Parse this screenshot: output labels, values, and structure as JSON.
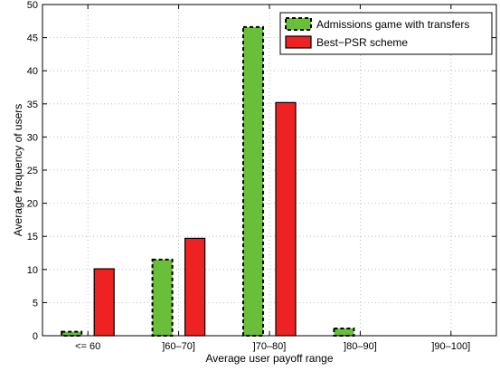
{
  "chart_data": {
    "type": "bar",
    "title": "",
    "xlabel": "Average user payoff range",
    "ylabel": "Average frequency of users",
    "categories": [
      "<= 60",
      "]60–70]",
      "]70–80]",
      "]80–90]",
      "]90–100]"
    ],
    "ylim": [
      0,
      50
    ],
    "yticks": [
      0,
      5,
      10,
      15,
      20,
      25,
      30,
      35,
      40,
      45,
      50
    ],
    "grid": true,
    "legend_position": "top-right",
    "series": [
      {
        "name": "Admissions game with transfers",
        "color": "#6abf3a",
        "border": "dashed",
        "values": [
          0.6,
          11.5,
          46.6,
          1.1,
          0.0
        ]
      },
      {
        "name": "Best−PSR scheme",
        "color": "#ee2222",
        "border": "solid",
        "values": [
          10.1,
          14.7,
          35.2,
          0.0,
          0.0
        ]
      }
    ]
  }
}
